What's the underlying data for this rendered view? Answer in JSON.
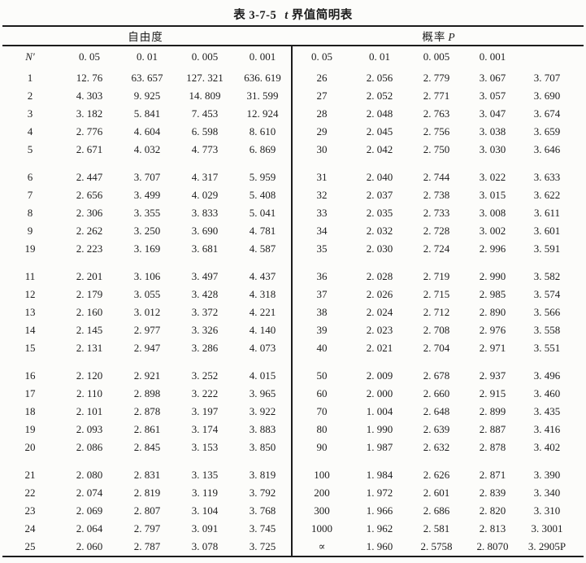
{
  "title": {
    "prefix": "表 3-7-5",
    "var": "t",
    "suffix": "界值简明表"
  },
  "group_headers": {
    "left": "自由度",
    "right_prefix": "概率",
    "right_var": "P"
  },
  "columns": {
    "left": [
      {
        "text": "N′",
        "italic": true
      },
      "0. 05",
      "0. 01",
      "0. 005",
      "0. 001"
    ],
    "right": [
      "0. 05",
      "0. 01",
      "0. 005",
      "0. 001",
      ""
    ]
  },
  "table": {
    "left_groups": [
      [
        [
          "1",
          "12. 76",
          "63. 657",
          "127. 321",
          "636. 619"
        ],
        [
          "2",
          "4. 303",
          "9. 925",
          "14. 809",
          "31. 599"
        ],
        [
          "3",
          "3. 182",
          "5. 841",
          "7. 453",
          "12. 924"
        ],
        [
          "4",
          "2. 776",
          "4. 604",
          "6. 598",
          "8. 610"
        ],
        [
          "5",
          "2. 671",
          "4. 032",
          "4. 773",
          "6. 869"
        ]
      ],
      [
        [
          "6",
          "2. 447",
          "3. 707",
          "4. 317",
          "5. 959"
        ],
        [
          "7",
          "2. 656",
          "3. 499",
          "4. 029",
          "5. 408"
        ],
        [
          "8",
          "2. 306",
          "3. 355",
          "3. 833",
          "5. 041"
        ],
        [
          "9",
          "2. 262",
          "3. 250",
          "3. 690",
          "4. 781"
        ],
        [
          "19",
          "2. 223",
          "3. 169",
          "3. 681",
          "4. 587"
        ]
      ],
      [
        [
          "11",
          "2. 201",
          "3. 106",
          "3. 497",
          "4. 437"
        ],
        [
          "12",
          "2. 179",
          "3. 055",
          "3. 428",
          "4. 318"
        ],
        [
          "13",
          "2. 160",
          "3. 012",
          "3. 372",
          "4. 221"
        ],
        [
          "14",
          "2. 145",
          "2. 977",
          "3. 326",
          "4. 140"
        ],
        [
          "15",
          "2. 131",
          "2. 947",
          "3. 286",
          "4. 073"
        ]
      ],
      [
        [
          "16",
          "2. 120",
          "2. 921",
          "3. 252",
          "4. 015"
        ],
        [
          "17",
          "2. 110",
          "2. 898",
          "3. 222",
          "3. 965"
        ],
        [
          "18",
          "2. 101",
          "2. 878",
          "3. 197",
          "3. 922"
        ],
        [
          "19",
          "2. 093",
          "2. 861",
          "3. 174",
          "3. 883"
        ],
        [
          "20",
          "2. 086",
          "2. 845",
          "3. 153",
          "3. 850"
        ]
      ],
      [
        [
          "21",
          "2. 080",
          "2. 831",
          "3. 135",
          "3. 819"
        ],
        [
          "22",
          "2. 074",
          "2. 819",
          "3. 119",
          "3. 792"
        ],
        [
          "23",
          "2. 069",
          "2. 807",
          "3. 104",
          "3. 768"
        ],
        [
          "24",
          "2. 064",
          "2. 797",
          "3. 091",
          "3. 745"
        ],
        [
          "25",
          "2. 060",
          "2. 787",
          "3. 078",
          "3. 725"
        ]
      ]
    ],
    "right_groups": [
      [
        [
          "26",
          "2. 056",
          "2. 779",
          "3. 067",
          "3. 707"
        ],
        [
          "27",
          "2. 052",
          "2. 771",
          "3. 057",
          "3. 690"
        ],
        [
          "28",
          "2. 048",
          "2. 763",
          "3. 047",
          "3. 674"
        ],
        [
          "29",
          "2. 045",
          "2. 756",
          "3. 038",
          "3. 659"
        ],
        [
          "30",
          "2. 042",
          "2. 750",
          "3. 030",
          "3. 646"
        ]
      ],
      [
        [
          "31",
          "2. 040",
          "2. 744",
          "3. 022",
          "3. 633"
        ],
        [
          "32",
          "2. 037",
          "2. 738",
          "3. 015",
          "3. 622"
        ],
        [
          "33",
          "2. 035",
          "2. 733",
          "3. 008",
          "3. 611"
        ],
        [
          "34",
          "2. 032",
          "2. 728",
          "3. 002",
          "3. 601"
        ],
        [
          "35",
          "2. 030",
          "2. 724",
          "2. 996",
          "3. 591"
        ]
      ],
      [
        [
          "36",
          "2. 028",
          "2. 719",
          "2. 990",
          "3. 582"
        ],
        [
          "37",
          "2. 026",
          "2. 715",
          "2. 985",
          "3. 574"
        ],
        [
          "38",
          "2. 024",
          "2. 712",
          "2. 890",
          "3. 566"
        ],
        [
          "39",
          "2. 023",
          "2. 708",
          "2. 976",
          "3. 558"
        ],
        [
          "40",
          "2. 021",
          "2. 704",
          "2. 971",
          "3. 551"
        ]
      ],
      [
        [
          "50",
          "2. 009",
          "2. 678",
          "2. 937",
          "3. 496"
        ],
        [
          "60",
          "2. 000",
          "2. 660",
          "2. 915",
          "3. 460"
        ],
        [
          "70",
          "1. 004",
          "2. 648",
          "2. 899",
          "3. 435"
        ],
        [
          "80",
          "1. 990",
          "2. 639",
          "2. 887",
          "3. 416"
        ],
        [
          "90",
          "1. 987",
          "2. 632",
          "2. 878",
          "3. 402"
        ]
      ],
      [
        [
          "100",
          "1. 984",
          "2. 626",
          "2. 871",
          "3. 390"
        ],
        [
          "200",
          "1. 972",
          "2. 601",
          "2. 839",
          "3. 340"
        ],
        [
          "300",
          "1. 966",
          "2. 686",
          "2. 820",
          "3. 310"
        ],
        [
          "1000",
          "1. 962",
          "2. 581",
          "2. 813",
          "3. 3001"
        ],
        [
          "∝",
          "1. 960",
          "2. 5758",
          "2. 8070",
          "3. 2905P"
        ]
      ]
    ]
  },
  "colors": {
    "text": "#1d1d1d",
    "rule": "#1c1c1c",
    "background": "#fcfcfa"
  }
}
